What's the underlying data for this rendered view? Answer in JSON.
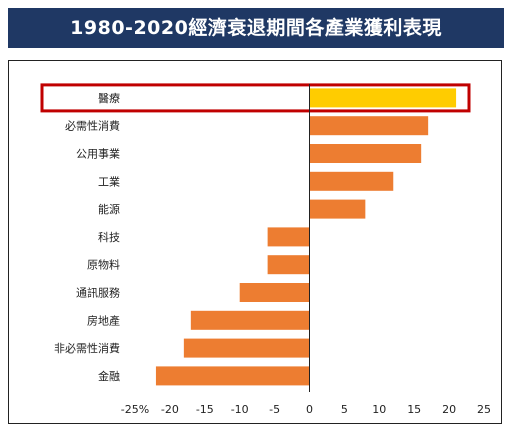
{
  "title": "1980-2020經濟衰退期間各產業獲利表現",
  "chart_data": {
    "type": "bar",
    "orientation": "horizontal",
    "categories": [
      "醫療",
      "必需性消費",
      "公用事業",
      "工業",
      "能源",
      "科技",
      "原物料",
      "通訊服務",
      "房地產",
      "非必需性消費",
      "金融"
    ],
    "values": [
      21,
      17,
      16,
      12,
      8,
      -6,
      -6,
      -10,
      -17,
      -18,
      -22
    ],
    "highlighted_category": "醫療",
    "xlim": [
      -25,
      25
    ],
    "xticks": [
      -25,
      -20,
      -15,
      -10,
      -5,
      0,
      5,
      10,
      15,
      20,
      25
    ],
    "xtick_labels": [
      "-25%",
      "-20",
      "-15",
      "-10",
      "-5",
      "0",
      "5",
      "10",
      "15",
      "20",
      "25"
    ],
    "colors": {
      "bar": "#ed7d31",
      "highlight_bar": "#ffcc00",
      "highlight_border": "#c00000",
      "axis": "#222222"
    },
    "grid": false,
    "legend": "none"
  }
}
